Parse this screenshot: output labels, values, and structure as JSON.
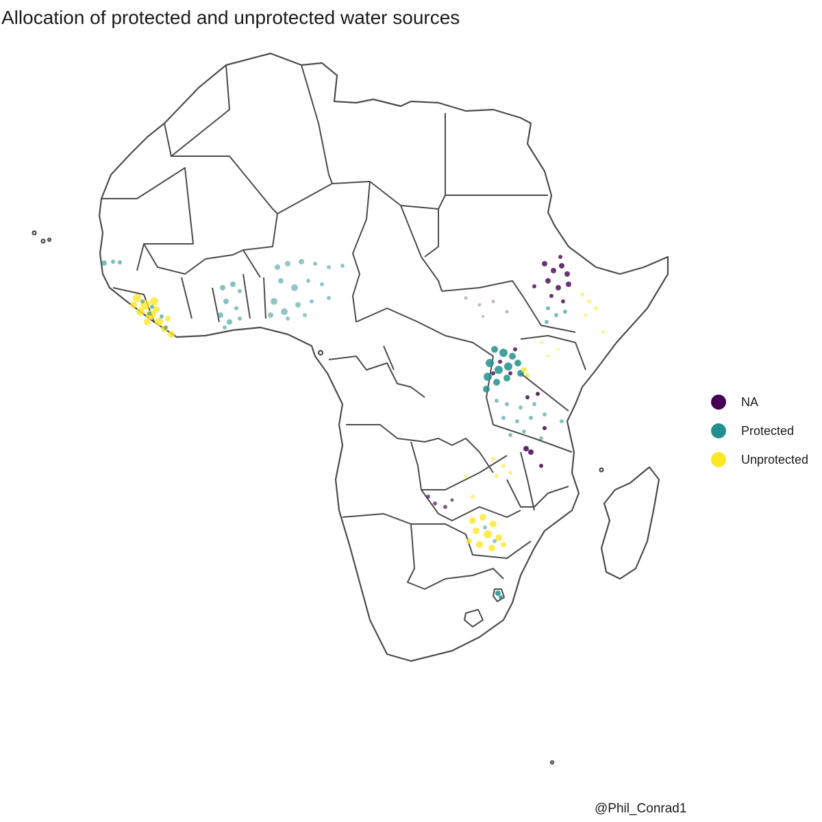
{
  "title": "Allocation of protected and unprotected water sources",
  "caption": "@Phil_Conrad1",
  "legend": {
    "items": [
      {
        "label": "NA",
        "color": "#440154"
      },
      {
        "label": "Protected",
        "color": "#21908C"
      },
      {
        "label": "Unprotected",
        "color": "#FDE725"
      }
    ]
  },
  "map": {
    "region": "Africa",
    "outline_color": "#4a4a4a",
    "background": "#ffffff"
  }
}
